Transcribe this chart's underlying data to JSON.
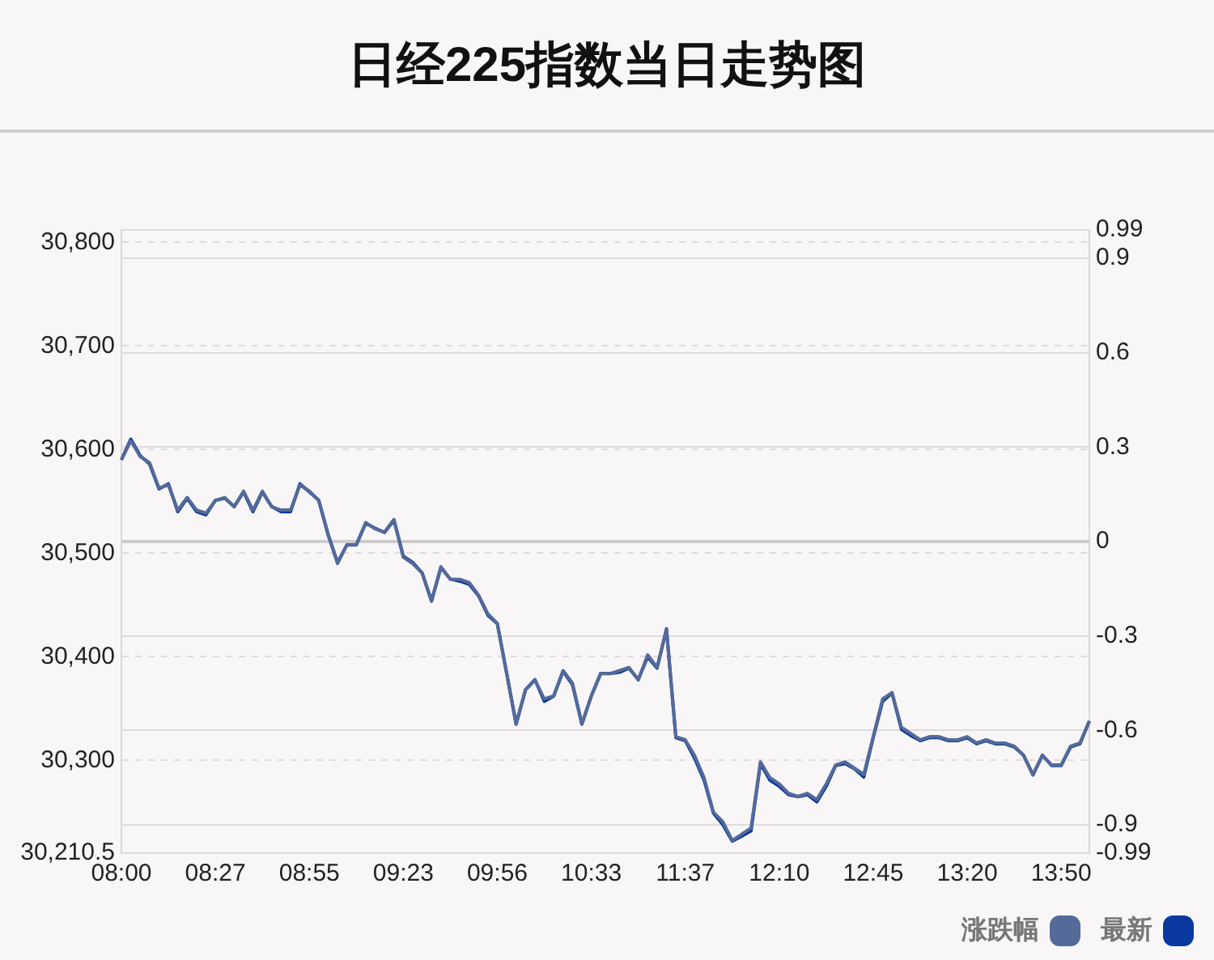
{
  "chart_data": {
    "type": "line",
    "title": "日经225指数当日走势图",
    "categories": [
      "08:00",
      null,
      null,
      null,
      null,
      null,
      null,
      null,
      null,
      null,
      "08:27",
      null,
      null,
      null,
      null,
      null,
      null,
      null,
      null,
      null,
      "08:55",
      null,
      null,
      null,
      null,
      null,
      null,
      null,
      null,
      null,
      "09:23",
      null,
      null,
      null,
      null,
      null,
      null,
      null,
      null,
      null,
      "09:56",
      null,
      null,
      null,
      null,
      null,
      null,
      null,
      null,
      null,
      "10:33",
      null,
      null,
      null,
      null,
      null,
      null,
      null,
      null,
      null,
      "11:37",
      null,
      null,
      null,
      null,
      null,
      null,
      null,
      null,
      null,
      "12:10",
      null,
      null,
      null,
      null,
      null,
      null,
      null,
      null,
      null,
      "12:45",
      null,
      null,
      null,
      null,
      null,
      null,
      null,
      null,
      null,
      "13:20",
      null,
      null,
      null,
      null,
      null,
      null,
      null,
      null,
      null,
      "13:50",
      null,
      null,
      null
    ],
    "series": [
      {
        "name": "最新",
        "color": "#0a3aa0",
        "axis": "y",
        "values": [
          30590,
          30610,
          30594,
          30586,
          30562,
          30567,
          30540,
          30553,
          30540,
          30537,
          30551,
          30553,
          30545,
          30559,
          30540,
          30559,
          30545,
          30540,
          30540,
          30567,
          30559,
          30551,
          30518,
          30491,
          30508,
          30508,
          30529,
          30524,
          30520,
          30532,
          30497,
          30491,
          30481,
          30454,
          30486,
          30475,
          30473,
          30470,
          30459,
          30440,
          30432,
          30384,
          30335,
          30368,
          30378,
          30357,
          30362,
          30386,
          30373,
          30335,
          30362,
          30384,
          30384,
          30385,
          30389,
          30378,
          30400,
          30389,
          30427,
          30322,
          30319,
          30302,
          30281,
          30249,
          30238,
          30222,
          30227,
          30232,
          30297,
          30281,
          30275,
          30267,
          30265,
          30267,
          30260,
          30275,
          30295,
          30297,
          30292,
          30284,
          30322,
          30357,
          30365,
          30330,
          30324,
          30319,
          30322,
          30322,
          30319,
          30319,
          30322,
          30316,
          30319,
          30316,
          30316,
          30313,
          30305,
          30286,
          30305,
          30295,
          30295,
          30313,
          30316,
          30338
        ]
      },
      {
        "name": "涨跌幅",
        "color": "#546a99",
        "axis": "y2",
        "values": [
          0.26,
          0.32,
          0.27,
          0.25,
          0.17,
          0.18,
          0.1,
          0.14,
          0.1,
          0.09,
          0.13,
          0.14,
          0.11,
          0.16,
          0.1,
          0.16,
          0.11,
          0.1,
          0.1,
          0.18,
          0.16,
          0.13,
          0.02,
          -0.07,
          -0.01,
          -0.01,
          0.06,
          0.04,
          0.03,
          0.07,
          -0.05,
          -0.07,
          -0.1,
          -0.19,
          -0.08,
          -0.12,
          -0.12,
          -0.13,
          -0.17,
          -0.23,
          -0.26,
          -0.42,
          -0.58,
          -0.47,
          -0.44,
          -0.5,
          -0.49,
          -0.41,
          -0.45,
          -0.58,
          -0.49,
          -0.42,
          -0.42,
          -0.41,
          -0.4,
          -0.44,
          -0.36,
          -0.4,
          -0.28,
          -0.62,
          -0.63,
          -0.68,
          -0.75,
          -0.86,
          -0.89,
          -0.95,
          -0.93,
          -0.91,
          -0.7,
          -0.75,
          -0.77,
          -0.8,
          -0.81,
          -0.8,
          -0.82,
          -0.77,
          -0.71,
          -0.7,
          -0.72,
          -0.74,
          -0.62,
          -0.5,
          -0.48,
          -0.59,
          -0.61,
          -0.63,
          -0.62,
          -0.62,
          -0.63,
          -0.63,
          -0.62,
          -0.64,
          -0.63,
          -0.64,
          -0.64,
          -0.65,
          -0.68,
          -0.74,
          -0.68,
          -0.71,
          -0.71,
          -0.65,
          -0.64,
          -0.57
        ]
      }
    ],
    "ylim": [
      30210.5,
      30812
    ],
    "yticks": [
      {
        "value": 30210.5,
        "label": "30,210.5"
      },
      {
        "value": 30300,
        "label": "30,300"
      },
      {
        "value": 30400,
        "label": "30,400"
      },
      {
        "value": 30500,
        "label": "30,500"
      },
      {
        "value": 30600,
        "label": "30,600"
      },
      {
        "value": 30700,
        "label": "30,700"
      },
      {
        "value": 30800,
        "label": "30,800"
      }
    ],
    "y2lim": [
      -0.99,
      0.99
    ],
    "y2ticks": [
      -0.99,
      -0.9,
      -0.6,
      -0.3,
      0,
      0.3,
      0.6,
      0.9,
      0.99
    ],
    "ref_lines": [
      {
        "axis": "y2",
        "value": 0,
        "color": "#cccccc"
      }
    ],
    "grid": "y",
    "legend": "bottom right",
    "marker": "none",
    "line_style": "solid"
  }
}
